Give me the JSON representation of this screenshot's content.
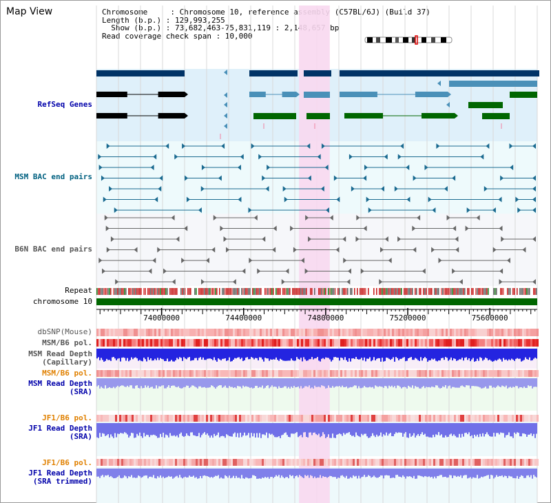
{
  "title": "Map View",
  "info": {
    "chromosome_line": "Chromosome     : Chromosome 10, reference assembly (C57BL/6J) (Build 37)",
    "length_line": "Length (b.p.) : 129,993,255",
    "show_line": "  Show (b.p.) : 73,682,463-75,831,119 : 2,148,657 bp",
    "coverage_line": "Read coverage check span : 10,000"
  },
  "tracks": {
    "refseq": {
      "label": "RefSeq Genes",
      "color": "#0000aa"
    },
    "msm_bac": {
      "label": "MSM BAC end pairs",
      "color": "#006080"
    },
    "b6n_bac": {
      "label": "B6N BAC end pairs",
      "color": "#555555"
    },
    "repeat": {
      "label": "Repeat"
    },
    "chromosome": {
      "label": "chromosome 10"
    },
    "dbsnp": {
      "label": "dbSNP(Mouse)",
      "color": "#555555"
    },
    "msm_b6_pol_1": {
      "label": "MSM/B6 pol.",
      "color": "#555555"
    },
    "msm_depth_cap": {
      "label_1": "MSM Read Depth",
      "label_2": "(Capillary)",
      "color": "#555555"
    },
    "msm_b6_pol_2": {
      "label": "MSM/B6 pol.",
      "color": "#e08000"
    },
    "msm_depth_sra": {
      "label_1": "MSM Read Depth",
      "label_2": "(SRA)",
      "color": "#0000aa"
    },
    "jf1_b6_pol_1": {
      "label": "JF1/B6 pol.",
      "color": "#e08000"
    },
    "jf1_depth_sra": {
      "label_1": "JF1 Read Depth",
      "label_2": "(SRA)",
      "color": "#0000aa"
    },
    "jf1_b6_pol_2": {
      "label": "JF1/B6 pol.",
      "color": "#e08000"
    },
    "jf1_depth_trim": {
      "label_1": "JF1 Read Depth",
      "label_2": "(SRA trimmed)",
      "color": "#0000aa"
    }
  },
  "ruler": {
    "ticks": [
      {
        "label": "74000000",
        "value": 74000000
      },
      {
        "label": "74400000",
        "value": 74400000
      },
      {
        "label": "74800000",
        "value": 74800000
      },
      {
        "label": "75200000",
        "value": 75200000
      },
      {
        "label": "75600000",
        "value": 75600000
      }
    ]
  },
  "region": {
    "start": 73682463,
    "end": 75831119
  },
  "highlight": {
    "start": 74670000,
    "end": 74820000,
    "color": "#f8d8f0"
  },
  "colors": {
    "refseq_bg": "#dff0fa",
    "msm_bg": "#eefafc",
    "b6n_bg": "#f6f7fa",
    "depth_bg": "#eef9fb",
    "gene_navy": "#003366",
    "gene_teal": "#4a90b8",
    "gene_green": "#006600",
    "pol_red": "#e02020",
    "pol_pink": "#f8b8b8",
    "depth_blue": "#2020e0",
    "depth_light": "#8a8ae8",
    "chromosome_green": "#006600"
  }
}
